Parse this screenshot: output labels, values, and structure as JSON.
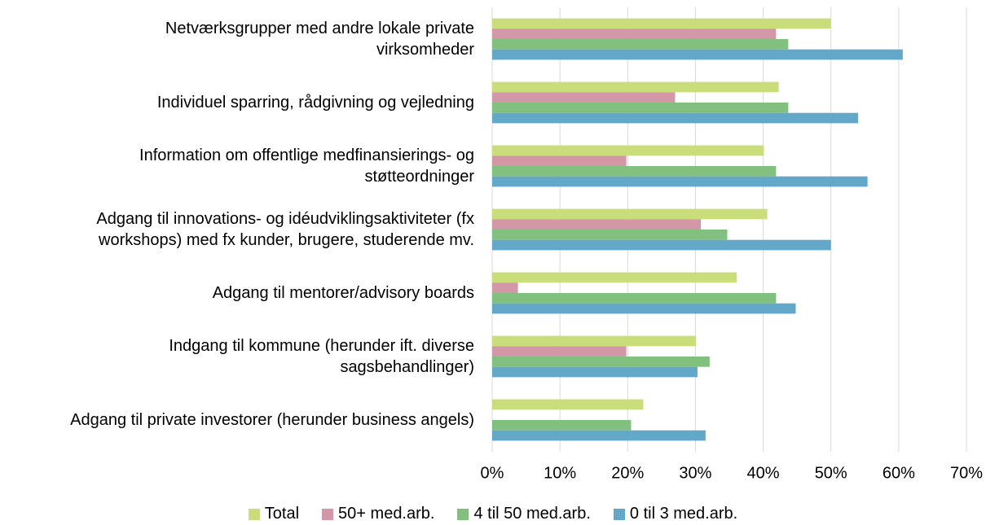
{
  "chart_data": {
    "type": "bar",
    "orientation": "horizontal",
    "categories": [
      "Netværksgrupper med andre lokale private\nvirksomheder",
      "Individuel sparring, rådgivning og vejledning",
      "Information om offentlige medfinansierings- og\nstøtteordninger",
      "Adgang til innovations- og idéudviklingsaktiviteter (fx\nworkshops) med fx kunder, brugere, studerende mv.",
      "Adgang til mentorer/advisory boards",
      "Indgang til kommune (herunder ift. diverse\nsagsbehandlinger)",
      "Adgang til private investorer (herunder business angels)"
    ],
    "series": [
      {
        "name": "Total",
        "color": "#c9dd7a",
        "values": [
          50,
          42.3,
          40.1,
          40.6,
          36.1,
          30.1,
          22.3
        ]
      },
      {
        "name": "50+ med.arb.",
        "color": "#d497a7",
        "values": [
          41.9,
          27,
          19.8,
          30.8,
          3.8,
          19.8,
          null
        ]
      },
      {
        "name": "4 til 50 med.arb.",
        "color": "#82c07f",
        "values": [
          43.7,
          43.7,
          41.9,
          34.7,
          41.9,
          32.1,
          20.5
        ]
      },
      {
        "name": "0 til 3 med.arb.",
        "color": "#64a8c9",
        "values": [
          60.6,
          54,
          55.4,
          50,
          44.8,
          30.3,
          31.5
        ]
      }
    ],
    "xlim": [
      0,
      70
    ],
    "xticks": [
      {
        "value": 0,
        "label": "0%"
      },
      {
        "value": 10,
        "label": "10%"
      },
      {
        "value": 20,
        "label": "20%"
      },
      {
        "value": 30,
        "label": "30%"
      },
      {
        "value": 40,
        "label": "40%"
      },
      {
        "value": 50,
        "label": "50%"
      },
      {
        "value": 60,
        "label": "60%"
      },
      {
        "value": 70,
        "label": "70%"
      }
    ],
    "grid": true,
    "legend": "bottom"
  }
}
